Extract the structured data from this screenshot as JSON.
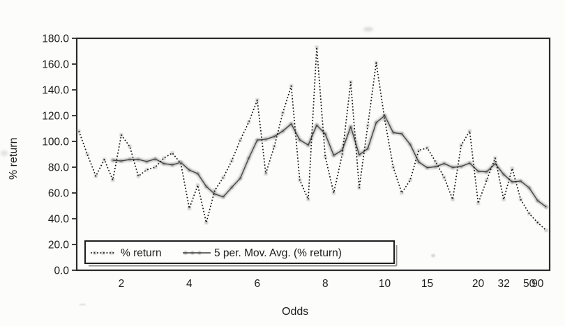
{
  "figure": {
    "y_axis_title": "% return",
    "x_axis_title": "Odds"
  },
  "legend": {
    "item1_label": "% return",
    "item2_label": "5 per. Mov. Avg. (% return)"
  },
  "colors": {
    "ink": "#1c1c1c",
    "plot_border": "#2b2b2b",
    "dotted_line": "#141414",
    "return_marker_gray": "#a8a8a8",
    "moving_avg_glow": "#9c9c9c",
    "moving_avg_core": "#3a3a3a",
    "background": "#fcfcfb",
    "scan_smudge": "#c4c4c4"
  },
  "chart_data": {
    "type": "line",
    "title": "",
    "xlabel": "Odds",
    "ylabel": "% return",
    "ylim": [
      0,
      180
    ],
    "ytick_step": 20,
    "ytick_labels": [
      "0.0",
      "20.0",
      "40.0",
      "60.0",
      "80.0",
      "100.0",
      "120.0",
      "140.0",
      "160.0",
      "180.0"
    ],
    "grid": false,
    "legend_position": "inside-bottom-left",
    "x_axis_kind": "categorical-odds-ladder",
    "x_point_count": 56,
    "xticks": [
      {
        "label": "2",
        "index": 5
      },
      {
        "label": "4",
        "index": 13
      },
      {
        "label": "6",
        "index": 21
      },
      {
        "label": "8",
        "index": 29
      },
      {
        "label": "10",
        "index": 36
      },
      {
        "label": "15",
        "index": 41
      },
      {
        "label": "20",
        "index": 47
      },
      {
        "label": "32",
        "index": 50
      },
      {
        "label": "50",
        "index": 53
      },
      {
        "label": "90",
        "index": 54
      }
    ],
    "series": [
      {
        "name": "% return",
        "style": "dotted-black-with-gray-square-markers",
        "start_index": 0,
        "values": [
          108,
          90,
          73,
          86,
          70,
          105,
          96,
          73,
          78,
          80,
          87,
          91,
          83,
          48,
          66,
          37,
          62,
          72,
          85,
          101,
          115,
          132,
          75,
          96,
          122,
          143,
          70,
          55,
          173,
          88,
          60,
          90,
          146,
          64,
          112,
          161,
          117,
          80,
          60,
          70,
          93,
          95,
          84,
          72,
          55,
          97,
          108,
          52,
          70,
          87,
          55,
          79,
          55,
          44,
          37,
          31
        ]
      },
      {
        "name": "5 per. Mov. Avg. (% return)",
        "style": "thick-gray-beaded-line-with-dark-core",
        "moving_average_window": 5,
        "start_index": 4,
        "values": [
          85.4,
          84.8,
          86.0,
          86.0,
          84.4,
          86.4,
          82.8,
          81.8,
          83.8,
          77.8,
          75.0,
          65.0,
          59.2,
          57.0,
          64.4,
          71.4,
          87.0,
          101.0,
          101.6,
          103.8,
          108.0,
          113.6,
          101.2,
          97.2,
          112.6,
          105.8,
          89.2,
          93.2,
          111.4,
          89.6,
          94.4,
          114.6,
          120.0,
          106.8,
          106.0,
          97.6,
          84.0,
          79.6,
          80.4,
          82.8,
          79.8,
          80.6,
          83.2,
          76.8,
          76.4,
          82.8,
          74.4,
          68.6,
          69.2,
          64.0,
          54.0,
          49.2
        ]
      }
    ]
  }
}
